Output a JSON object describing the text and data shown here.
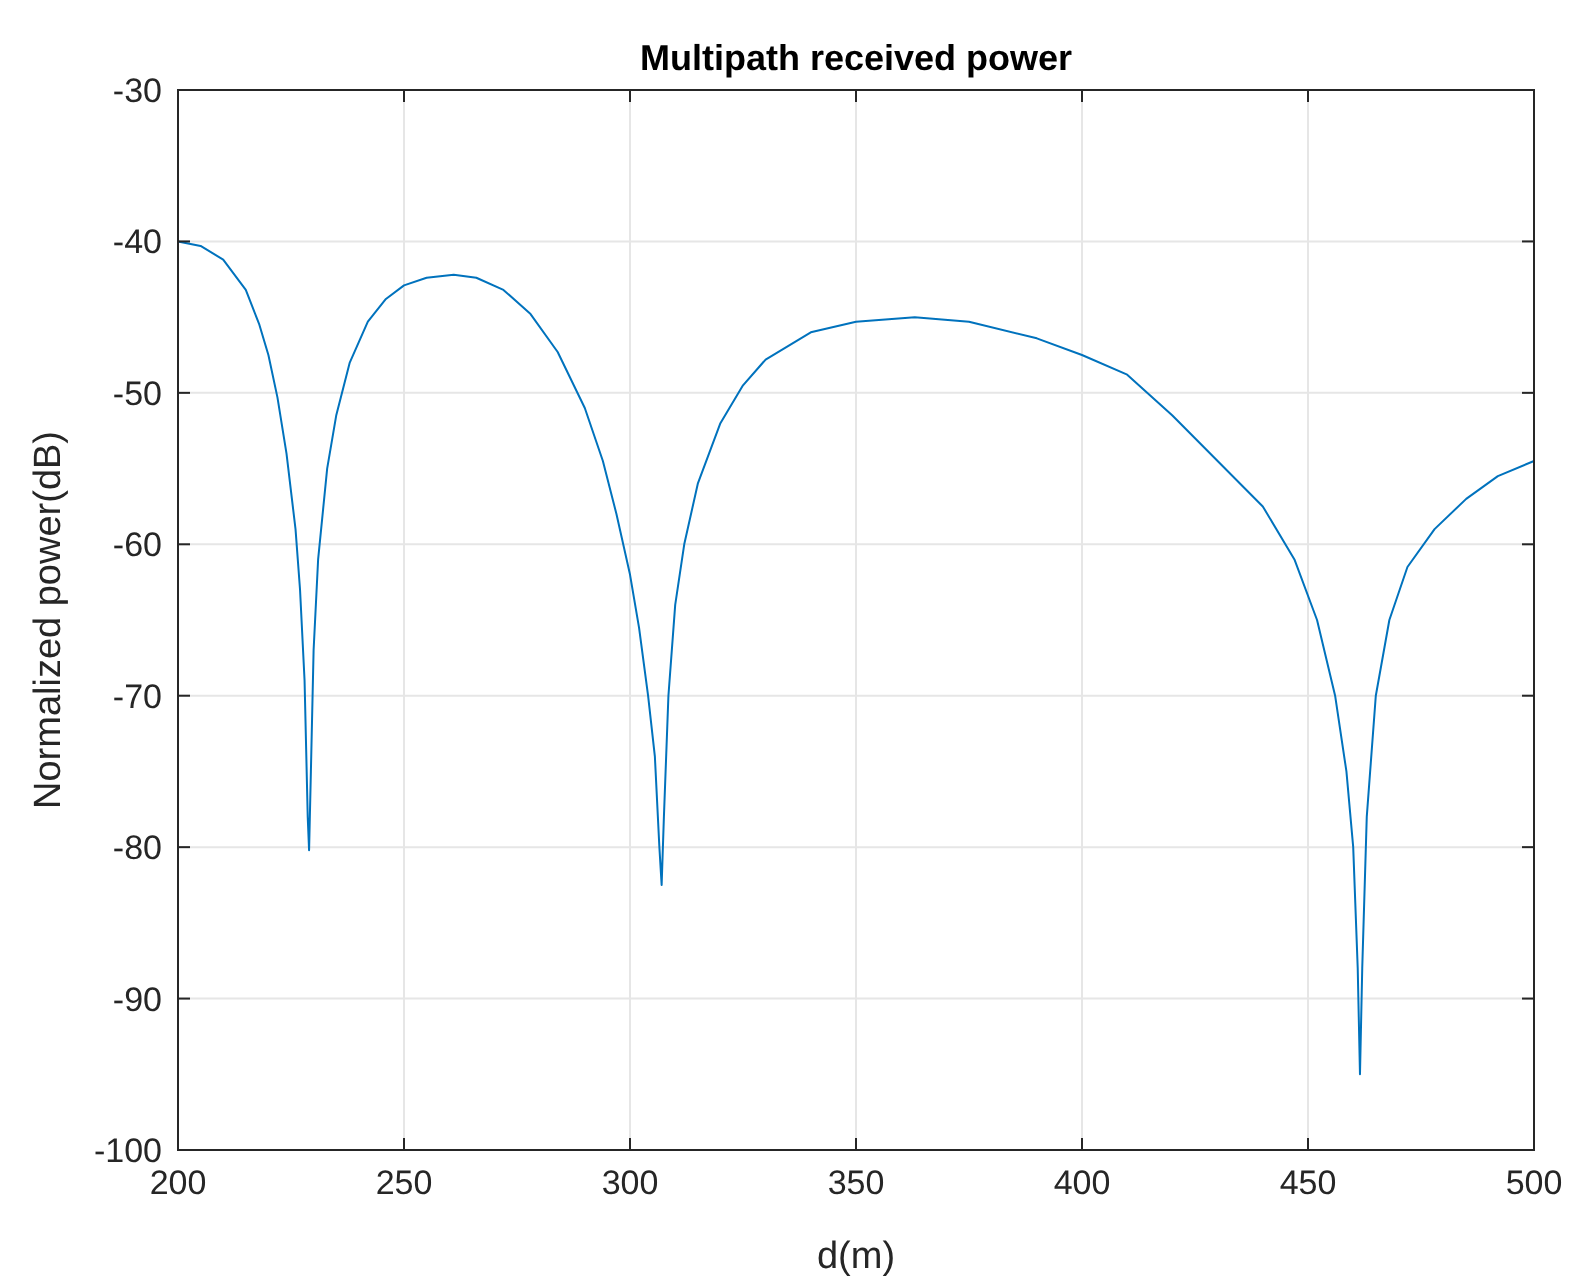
{
  "chart_data": {
    "type": "line",
    "title": "Multipath received power",
    "xlabel": "d(m)",
    "ylabel": "Normalized power(dB)",
    "series": [
      {
        "color": "#0072bd",
        "x": [
          200,
          205,
          210,
          215,
          218,
          220,
          222,
          224,
          226,
          227,
          228,
          228.7,
          229,
          229.4,
          230,
          231,
          233,
          235,
          238,
          242,
          246,
          250,
          255,
          261,
          266,
          272,
          278,
          284,
          290,
          294,
          297,
          300,
          302,
          304,
          305.5,
          306.5,
          307,
          307.5,
          308.5,
          310,
          312,
          315,
          320,
          325,
          330,
          340,
          350,
          363,
          375,
          390,
          400,
          410,
          420,
          430,
          440,
          447,
          452,
          456,
          458.5,
          460,
          461,
          461.5,
          462,
          463,
          465,
          468,
          472,
          478,
          485,
          492,
          500
        ],
        "values": [
          -40,
          -40.3,
          -41.2,
          -43.2,
          -45.5,
          -47.5,
          -50.3,
          -54,
          -59,
          -63,
          -69,
          -78,
          -80.2,
          -75,
          -67,
          -61,
          -55,
          -51.5,
          -48,
          -45.3,
          -43.8,
          -42.9,
          -42.4,
          -42.2,
          -42.4,
          -43.2,
          -44.8,
          -47.3,
          -51,
          -54.5,
          -58,
          -62,
          -65.5,
          -70,
          -74,
          -80,
          -82.5,
          -78,
          -70,
          -64,
          -60,
          -56,
          -52,
          -49.5,
          -47.8,
          -46,
          -45.3,
          -45,
          -45.3,
          -46.4,
          -47.5,
          -48.8,
          -51.5,
          -54.5,
          -57.5,
          -61,
          -65,
          -70,
          -75,
          -80,
          -88,
          -95,
          -88,
          -78,
          -70,
          -65,
          -61.5,
          -59,
          -57,
          -55.5,
          -54.5
        ]
      }
    ],
    "xlim": [
      200,
      500
    ],
    "xticks": [
      200,
      250,
      300,
      350,
      400,
      450,
      500
    ],
    "ylim": [
      -100,
      -30
    ],
    "yticks": [
      -100,
      -90,
      -80,
      -70,
      -60,
      -50,
      -40,
      -30
    ],
    "grid": true,
    "line_style": "solid",
    "marker": "none"
  }
}
